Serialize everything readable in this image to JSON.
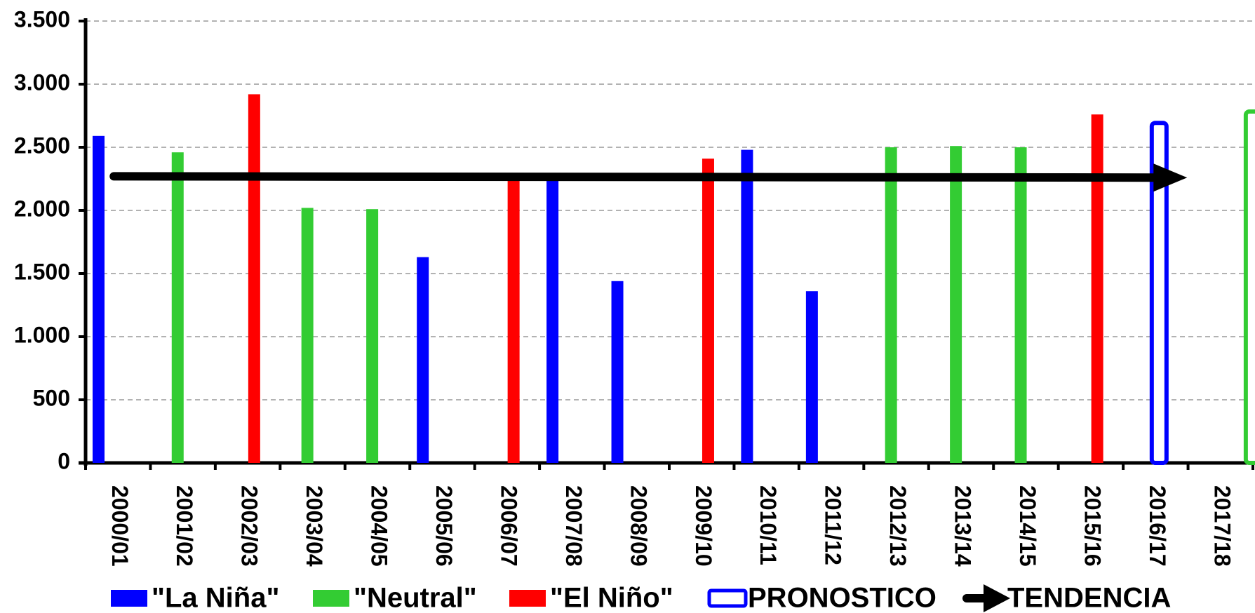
{
  "chart_data": {
    "type": "bar",
    "categories": [
      "2000/01",
      "2001/02",
      "2002/03",
      "2003/04",
      "2004/05",
      "2005/06",
      "2006/07",
      "2007/08",
      "2008/09",
      "2009/10",
      "2010/11",
      "2011/12",
      "2012/13",
      "2013/14",
      "2014/15",
      "2015/16",
      "2016/17",
      "2017/18"
    ],
    "series": [
      {
        "name": "\"La Niña\"",
        "color": "#0000ff",
        "values": [
          2590,
          null,
          null,
          null,
          null,
          1630,
          null,
          2250,
          1440,
          null,
          2480,
          1360,
          null,
          null,
          null,
          null,
          2710,
          null
        ]
      },
      {
        "name": "\"Neutral\"",
        "color": "#33cc33",
        "values": [
          null,
          2460,
          null,
          2020,
          2010,
          null,
          null,
          null,
          null,
          null,
          null,
          null,
          2500,
          2510,
          2500,
          null,
          null,
          2800
        ]
      },
      {
        "name": "\"El Niño\"",
        "color": "#ff0000",
        "values": [
          null,
          null,
          2920,
          null,
          null,
          null,
          2250,
          null,
          null,
          2410,
          null,
          null,
          null,
          null,
          null,
          2760,
          null,
          null
        ]
      }
    ],
    "forecast": {
      "name": "PRONOSTICO",
      "color": "#0000ff",
      "indices": [
        16,
        17
      ]
    },
    "trend": {
      "name": "TENDENCIA",
      "color": "#000000",
      "values": [
        2270,
        2260
      ]
    },
    "ylim": [
      0,
      3500
    ],
    "yticks": [
      0,
      500,
      {
        "value": 1000,
        "label": "1.000"
      },
      {
        "value": 1500,
        "label": "1.500"
      },
      {
        "value": 2000,
        "label": "2.000"
      },
      {
        "value": 2500,
        "label": "2.500"
      },
      {
        "value": 3000,
        "label": "3.000"
      },
      {
        "value": 3500,
        "label": "3.500"
      }
    ],
    "grid": true
  }
}
